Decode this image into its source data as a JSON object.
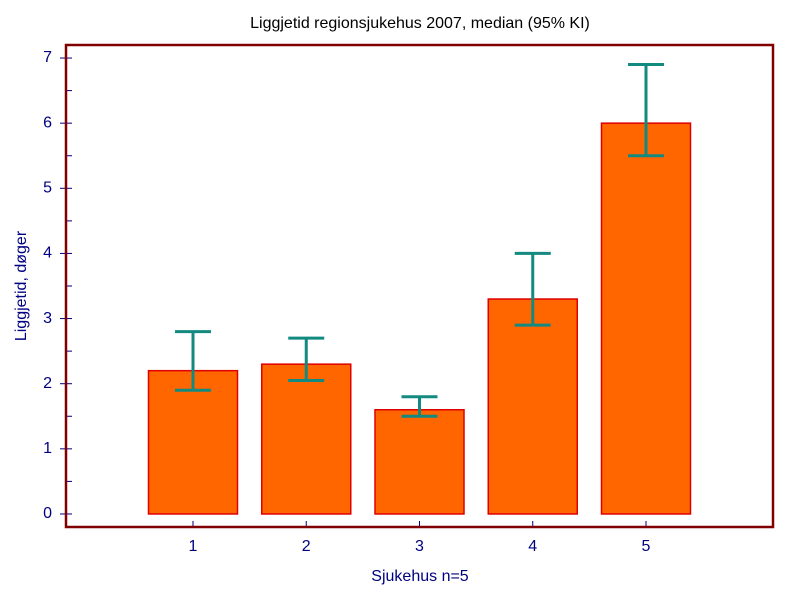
{
  "chart_data": {
    "type": "bar",
    "title": "Liggjetid regionsjukehus 2007, median  (95% KI)",
    "x_label": "Sjukehus n=5",
    "y_label": "Liggjetid, døger",
    "categories": [
      "1",
      "2",
      "3",
      "4",
      "5"
    ],
    "values": [
      2.2,
      2.3,
      1.6,
      3.3,
      6.0
    ],
    "ci_low": [
      1.9,
      2.05,
      1.5,
      2.9,
      5.5
    ],
    "ci_high": [
      2.8,
      2.7,
      1.8,
      4.0,
      6.9
    ],
    "color": "#ff6600",
    "edge_color": "#e00000",
    "error_color": "#138a80",
    "ylim": [
      -0.2,
      7.2
    ],
    "yticks": [
      0,
      1,
      2,
      3,
      4,
      5,
      6,
      7
    ],
    "yminorticks": [
      0.5,
      1.5,
      2.5,
      3.5,
      4.5,
      5.5,
      6.5
    ]
  }
}
